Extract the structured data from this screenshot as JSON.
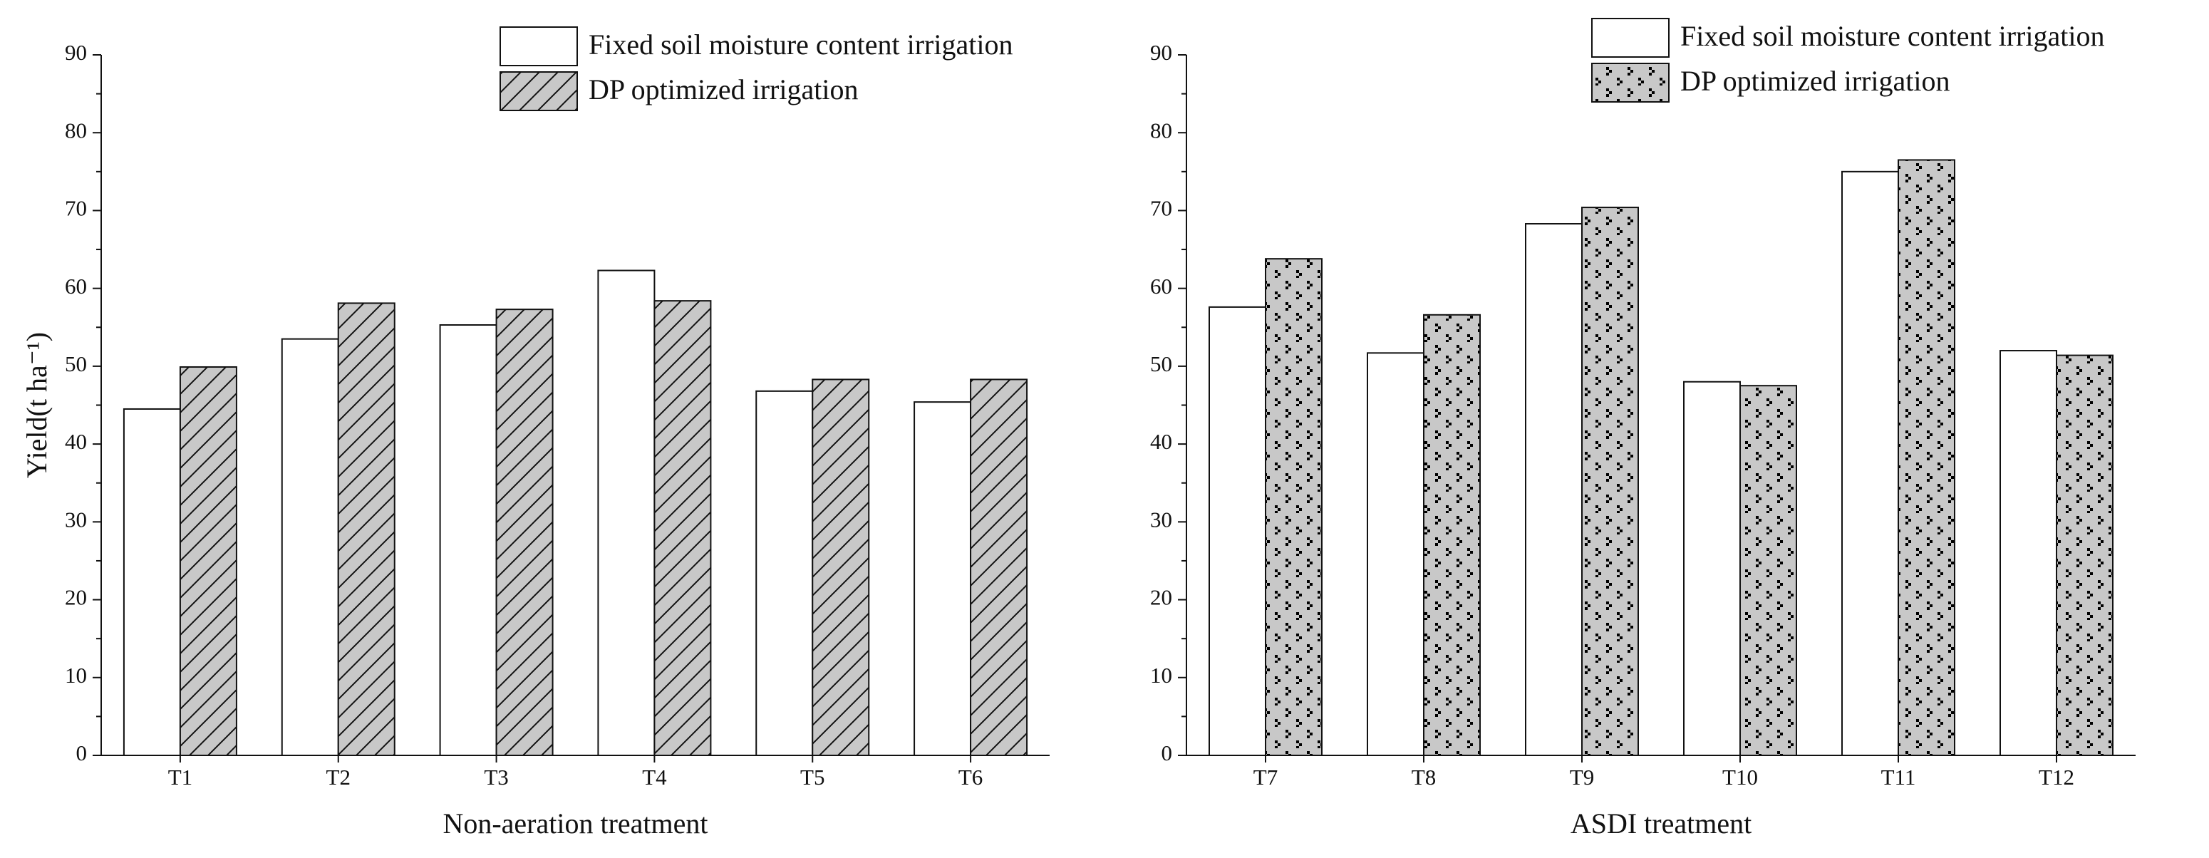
{
  "chart_data": [
    {
      "type": "bar",
      "xlabel": "Non-aeration treatment",
      "ylabel": "Yield(t ha⁻¹)",
      "categories": [
        "T1",
        "T2",
        "T3",
        "T4",
        "T5",
        "T6"
      ],
      "series": [
        {
          "name": "Fixed soil moisture content irrigation",
          "color": "#ffffff",
          "pattern": "none",
          "values": [
            44.5,
            53.5,
            55.3,
            62.3,
            46.8,
            45.4
          ]
        },
        {
          "name": "DP optimized irrigation",
          "color": "#c8c8c8",
          "pattern": "hatch",
          "values": [
            49.9,
            58.1,
            57.3,
            58.4,
            48.3,
            48.3
          ]
        }
      ],
      "ylim": [
        0,
        90
      ],
      "yticks": [
        0,
        10,
        20,
        30,
        40,
        50,
        60,
        70,
        80,
        90
      ]
    },
    {
      "type": "bar",
      "xlabel": "ASDI treatment",
      "categories": [
        "T7",
        "T8",
        "T9",
        "T10",
        "T11",
        "T12"
      ],
      "series": [
        {
          "name": "Fixed soil moisture content irrigation",
          "color": "#ffffff",
          "pattern": "none",
          "values": [
            57.6,
            51.7,
            68.3,
            48.0,
            75.0,
            52.0
          ]
        },
        {
          "name": "DP optimized irrigation",
          "color": "#c8c8c8",
          "pattern": "dots",
          "values": [
            63.8,
            56.6,
            70.4,
            47.5,
            76.5,
            51.4
          ]
        }
      ],
      "ylim": [
        0,
        90
      ],
      "yticks": [
        0,
        10,
        20,
        30,
        40,
        50,
        60,
        70,
        80,
        90
      ]
    }
  ]
}
